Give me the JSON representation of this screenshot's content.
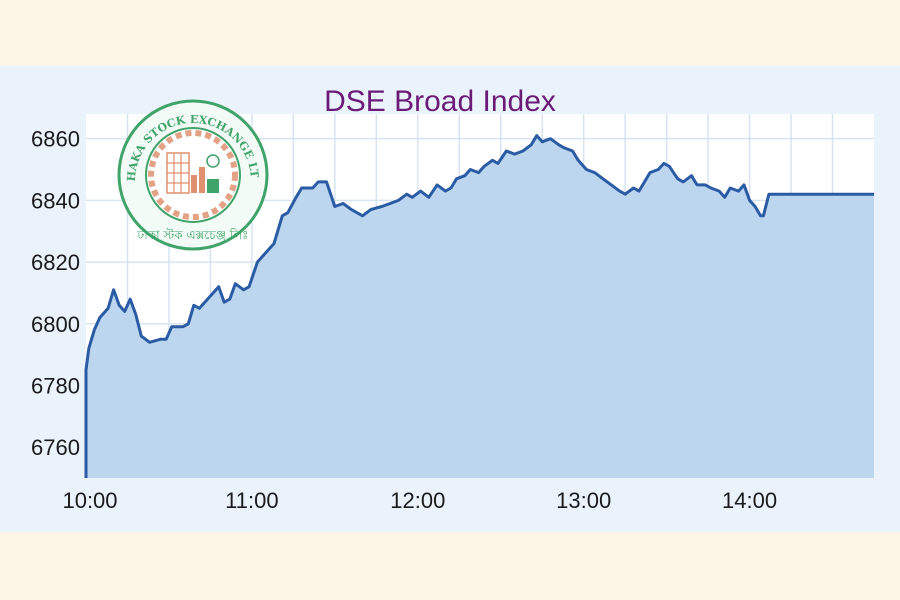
{
  "chart_data": {
    "type": "area",
    "title": "DSE Broad Index",
    "xlabel": "",
    "ylabel": "",
    "ylim": [
      6750,
      6868
    ],
    "xlim": [
      "10:00",
      "14:45"
    ],
    "x_ticks": [
      "10:00",
      "11:00",
      "12:00",
      "13:00",
      "14:00"
    ],
    "y_ticks": [
      6760,
      6780,
      6800,
      6820,
      6840,
      6860
    ],
    "grid": true,
    "series": [
      {
        "values": [
          [
            "10:00",
            6750
          ],
          [
            "10:00",
            6785
          ],
          [
            "10:01",
            6792
          ],
          [
            "10:03",
            6798
          ],
          [
            "10:05",
            6802
          ],
          [
            "10:08",
            6805
          ],
          [
            "10:10",
            6811
          ],
          [
            "10:12",
            6806
          ],
          [
            "10:14",
            6804
          ],
          [
            "10:16",
            6808
          ],
          [
            "10:18",
            6803
          ],
          [
            "10:20",
            6796
          ],
          [
            "10:23",
            6794
          ],
          [
            "10:27",
            6795
          ],
          [
            "10:29",
            6795
          ],
          [
            "10:31",
            6799
          ],
          [
            "10:35",
            6799
          ],
          [
            "10:37",
            6800
          ],
          [
            "10:39",
            6806
          ],
          [
            "10:41",
            6805
          ],
          [
            "10:45",
            6809
          ],
          [
            "10:48",
            6812
          ],
          [
            "10:50",
            6807
          ],
          [
            "10:52",
            6808
          ],
          [
            "10:54",
            6813
          ],
          [
            "10:57",
            6811
          ],
          [
            "10:59",
            6812
          ],
          [
            "11:02",
            6820
          ],
          [
            "11:05",
            6823
          ],
          [
            "11:08",
            6826
          ],
          [
            "11:11",
            6835
          ],
          [
            "11:13",
            6836
          ],
          [
            "11:16",
            6841
          ],
          [
            "11:18",
            6844
          ],
          [
            "11:20",
            6844
          ],
          [
            "11:22",
            6844
          ],
          [
            "11:24",
            6846
          ],
          [
            "11:27",
            6846
          ],
          [
            "11:30",
            6838
          ],
          [
            "11:33",
            6839
          ],
          [
            "11:36",
            6837
          ],
          [
            "11:38",
            6836
          ],
          [
            "11:40",
            6835
          ],
          [
            "11:43",
            6837
          ],
          [
            "11:47",
            6838
          ],
          [
            "11:50",
            6839
          ],
          [
            "11:53",
            6840
          ],
          [
            "11:56",
            6842
          ],
          [
            "11:58",
            6841
          ],
          [
            "12:01",
            6843
          ],
          [
            "12:04",
            6841
          ],
          [
            "12:07",
            6845
          ],
          [
            "12:10",
            6843
          ],
          [
            "12:12",
            6844
          ],
          [
            "12:14",
            6847
          ],
          [
            "12:17",
            6848
          ],
          [
            "12:19",
            6850
          ],
          [
            "12:22",
            6849
          ],
          [
            "12:24",
            6851
          ],
          [
            "12:27",
            6853
          ],
          [
            "12:29",
            6852
          ],
          [
            "12:32",
            6856
          ],
          [
            "12:35",
            6855
          ],
          [
            "12:38",
            6856
          ],
          [
            "12:41",
            6858
          ],
          [
            "12:43",
            6861
          ],
          [
            "12:45",
            6859
          ],
          [
            "12:48",
            6860
          ],
          [
            "12:51",
            6858
          ],
          [
            "12:53",
            6857
          ],
          [
            "12:56",
            6856
          ],
          [
            "12:58",
            6853
          ],
          [
            "13:01",
            6850
          ],
          [
            "13:04",
            6849
          ],
          [
            "13:07",
            6847
          ],
          [
            "13:10",
            6845
          ],
          [
            "13:13",
            6843
          ],
          [
            "13:15",
            6842
          ],
          [
            "13:18",
            6844
          ],
          [
            "13:20",
            6843
          ],
          [
            "13:22",
            6846
          ],
          [
            "13:24",
            6849
          ],
          [
            "13:27",
            6850
          ],
          [
            "13:29",
            6852
          ],
          [
            "13:31",
            6851
          ],
          [
            "13:34",
            6847
          ],
          [
            "13:36",
            6846
          ],
          [
            "13:39",
            6848
          ],
          [
            "13:41",
            6845
          ],
          [
            "13:44",
            6845
          ],
          [
            "13:46",
            6844
          ],
          [
            "13:49",
            6843
          ],
          [
            "13:51",
            6841
          ],
          [
            "13:53",
            6844
          ],
          [
            "13:56",
            6843
          ],
          [
            "13:58",
            6845
          ],
          [
            "14:00",
            6840
          ],
          [
            "14:02",
            6838
          ],
          [
            "14:04",
            6835
          ],
          [
            "14:05",
            6835
          ],
          [
            "14:07",
            6842
          ],
          [
            "14:45",
            6842
          ]
        ]
      }
    ]
  }
}
